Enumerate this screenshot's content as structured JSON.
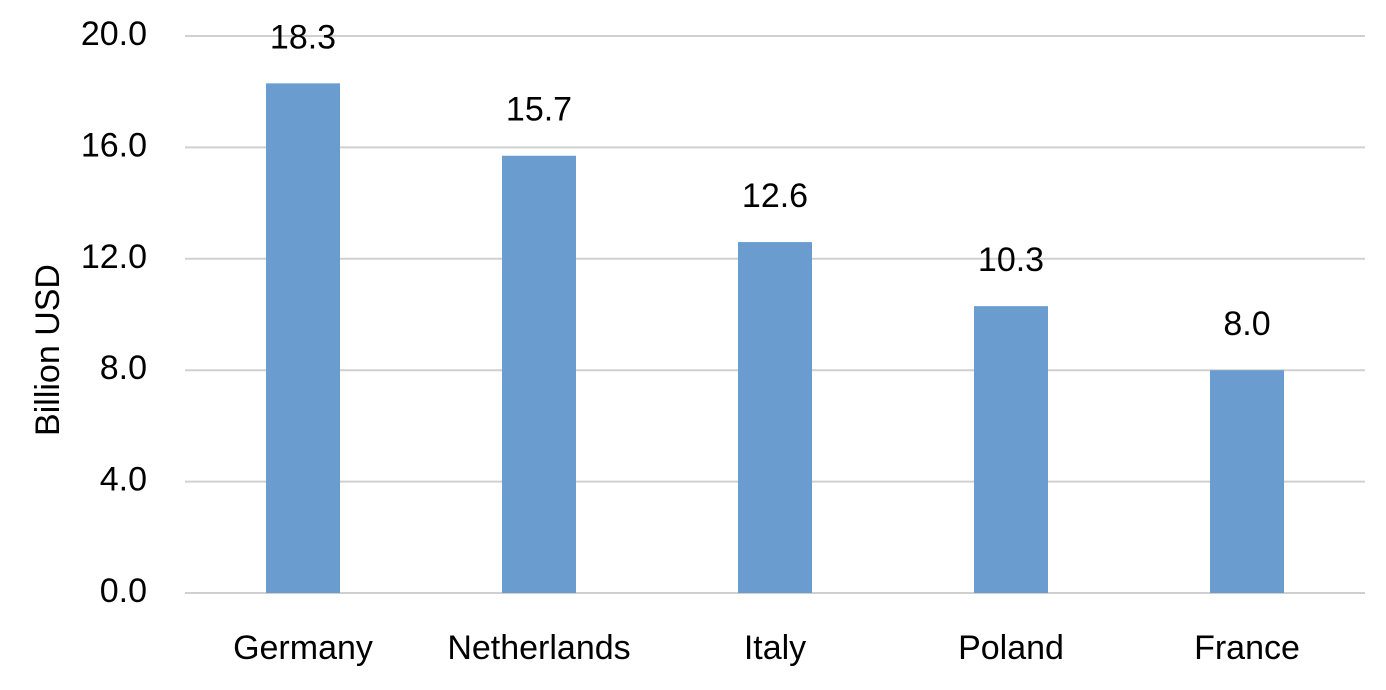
{
  "chart_data": {
    "type": "bar",
    "y_label": "Billion USD",
    "categories": [
      "Germany",
      "Netherlands",
      "Italy",
      "Poland",
      "France"
    ],
    "values": [
      18.3,
      15.7,
      12.6,
      10.3,
      8.0
    ],
    "value_labels": [
      "18.3",
      "15.7",
      "12.6",
      "10.3",
      "8.0"
    ],
    "color": "#6a9ccf",
    "ylim": [
      0,
      20
    ],
    "yticks": [
      {
        "value": 0,
        "label": "0.0"
      },
      {
        "value": 4,
        "label": "4.0"
      },
      {
        "value": 8,
        "label": "8.0"
      },
      {
        "value": 12,
        "label": "12.0"
      },
      {
        "value": 16,
        "label": "16.0"
      },
      {
        "value": 20,
        "label": "20.0"
      }
    ],
    "grid": true
  }
}
